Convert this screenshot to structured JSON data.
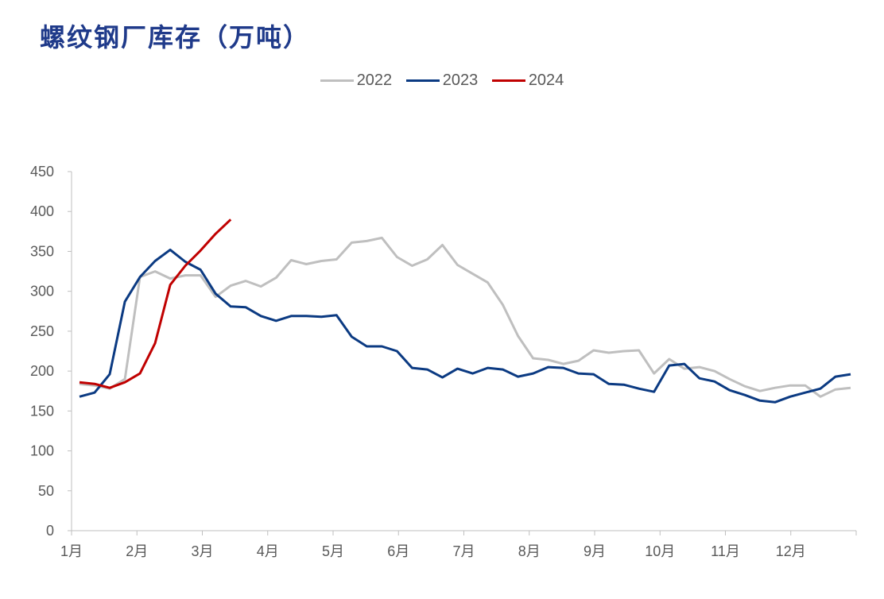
{
  "title": "螺纹钢厂库存（万吨）",
  "colors": {
    "2022": "#bfbfbf",
    "2023": "#0b3a82",
    "2024": "#c00000"
  },
  "chart_data": {
    "type": "line",
    "title": "螺纹钢厂库存（万吨）",
    "xlabel": "",
    "ylabel": "",
    "ylim": [
      0,
      450
    ],
    "yticks": [
      "0",
      "50",
      "100",
      "150",
      "200",
      "250",
      "300",
      "350",
      "400",
      "450"
    ],
    "xticks": [
      "1月",
      "2月",
      "3月",
      "4月",
      "5月",
      "6月",
      "7月",
      "8月",
      "9月",
      "10月",
      "11月",
      "12月"
    ],
    "x_unit": "week-of-year (1 = first week of January, 52 = last week of December)",
    "legend": "top",
    "grid": false,
    "series": [
      {
        "name": "2022",
        "color": "#bfbfbf",
        "start_week": 1,
        "values": [
          184,
          182,
          178,
          190,
          318,
          325,
          316,
          320,
          320,
          293,
          307,
          313,
          306,
          317,
          339,
          334,
          338,
          340,
          361,
          363,
          367,
          343,
          332,
          340,
          358,
          333,
          322,
          311,
          283,
          244,
          216,
          214,
          209,
          213,
          226,
          223,
          225,
          226,
          197,
          215,
          203,
          205,
          200,
          190,
          181,
          175,
          179,
          182,
          182,
          168,
          177,
          179
        ]
      },
      {
        "name": "2023",
        "color": "#0b3a82",
        "start_week": 1,
        "values": [
          168,
          173,
          196,
          287,
          318,
          338,
          352,
          337,
          327,
          297,
          281,
          280,
          269,
          263,
          269,
          269,
          268,
          270,
          243,
          231,
          231,
          225,
          204,
          202,
          192,
          203,
          197,
          204,
          202,
          193,
          197,
          205,
          204,
          197,
          196,
          184,
          183,
          178,
          174,
          207,
          209,
          191,
          187,
          176,
          170,
          163,
          161,
          168,
          173,
          178,
          193,
          196
        ]
      },
      {
        "name": "2024",
        "color": "#c00000",
        "start_week": 1,
        "values": [
          186,
          184,
          179,
          186,
          197,
          235,
          308,
          332,
          351,
          372,
          390
        ]
      }
    ]
  }
}
